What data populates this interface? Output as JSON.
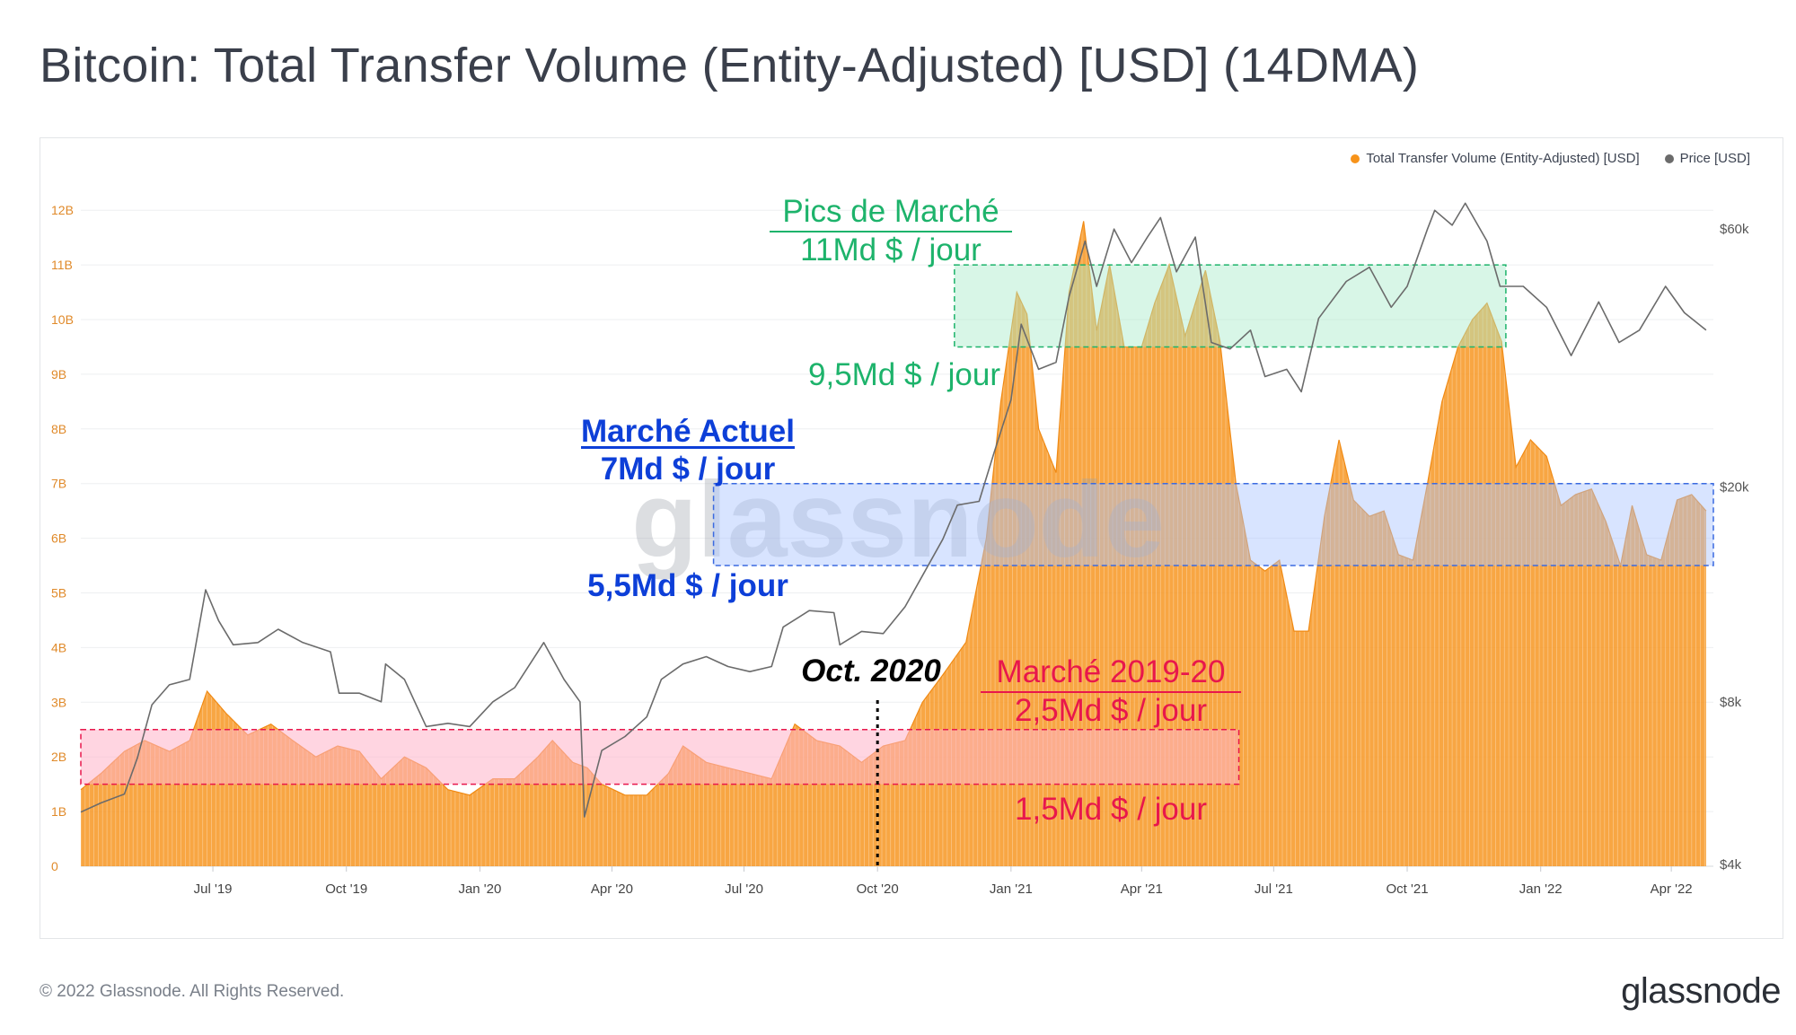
{
  "title": "Bitcoin: Total Transfer Volume (Entity-Adjusted) [USD] (14DMA)",
  "footer": {
    "copyright": "© 2022 Glassnode. All Rights Reserved.",
    "logo": "glassnode"
  },
  "watermark": "glassnode",
  "colors": {
    "volume": "#f7931a",
    "price": "#6b6b6b",
    "peak": "#1db36b",
    "current": "#0d3fd8",
    "y1920": "#e8174c"
  },
  "legend": [
    {
      "label": "Total Transfer Volume (Entity-Adjusted) [USD]",
      "color": "#f7931a"
    },
    {
      "label": "Price [USD]",
      "color": "#6b6b6b"
    }
  ],
  "annotations": {
    "peak_title": "Pics de Marché",
    "peak_top": "11Md $ / jour",
    "peak_bottom": "9,5Md $ / jour",
    "current_title": "Marché Actuel",
    "current_top": "7Md $ / jour",
    "current_bottom": "5,5Md $ / jour",
    "y1920_title": "Marché 2019-20",
    "y1920_top": "2,5Md $ / jour",
    "y1920_bottom": "1,5Md $ / jour",
    "oct2020": "Oct. 2020"
  },
  "chart_data": {
    "type": "area",
    "x_range": [
      "2019-04-01",
      "2022-04-30"
    ],
    "x_ticks": [
      "Jul '19",
      "Oct '19",
      "Jan '20",
      "Apr '20",
      "Jul '20",
      "Oct '20",
      "Jan '21",
      "Apr '21",
      "Jul '21",
      "Oct '21",
      "Jan '22",
      "Apr '22"
    ],
    "y_left": {
      "label": "Total Transfer Volume (Entity-Adjusted) [USD]",
      "range": [
        0,
        12.5
      ],
      "unit": "B",
      "ticks": [
        "0",
        "1B",
        "2B",
        "3B",
        "4B",
        "5B",
        "6B",
        "7B",
        "8B",
        "9B",
        "10B",
        "11B",
        "12B"
      ]
    },
    "y_right": {
      "label": "Price [USD]",
      "scale": "log",
      "range": [
        4000,
        80000
      ],
      "ticks": [
        "$4k",
        "$8k",
        "$20k",
        "$60k"
      ]
    },
    "series": [
      {
        "name": "Total Transfer Volume (Entity-Adjusted) [USD]",
        "unit": "billion USD",
        "points": [
          [
            "2019-04-01",
            1.4
          ],
          [
            "2019-04-15",
            1.7
          ],
          [
            "2019-05-01",
            2.1
          ],
          [
            "2019-05-15",
            2.3
          ],
          [
            "2019-06-01",
            2.1
          ],
          [
            "2019-06-15",
            2.3
          ],
          [
            "2019-06-27",
            3.2
          ],
          [
            "2019-07-10",
            2.8
          ],
          [
            "2019-07-25",
            2.4
          ],
          [
            "2019-08-10",
            2.6
          ],
          [
            "2019-08-25",
            2.3
          ],
          [
            "2019-09-10",
            2.0
          ],
          [
            "2019-09-25",
            2.2
          ],
          [
            "2019-10-10",
            2.1
          ],
          [
            "2019-10-25",
            1.6
          ],
          [
            "2019-11-10",
            2.0
          ],
          [
            "2019-11-25",
            1.8
          ],
          [
            "2019-12-10",
            1.4
          ],
          [
            "2019-12-25",
            1.3
          ],
          [
            "2020-01-10",
            1.6
          ],
          [
            "2020-01-25",
            1.6
          ],
          [
            "2020-02-10",
            2.0
          ],
          [
            "2020-02-20",
            2.3
          ],
          [
            "2020-03-05",
            1.9
          ],
          [
            "2020-03-15",
            1.8
          ],
          [
            "2020-03-25",
            1.5
          ],
          [
            "2020-04-10",
            1.3
          ],
          [
            "2020-04-25",
            1.3
          ],
          [
            "2020-05-10",
            1.7
          ],
          [
            "2020-05-20",
            2.2
          ],
          [
            "2020-06-05",
            1.9
          ],
          [
            "2020-06-20",
            1.8
          ],
          [
            "2020-07-05",
            1.7
          ],
          [
            "2020-07-20",
            1.6
          ],
          [
            "2020-08-05",
            2.6
          ],
          [
            "2020-08-20",
            2.3
          ],
          [
            "2020-09-05",
            2.2
          ],
          [
            "2020-09-20",
            1.9
          ],
          [
            "2020-10-05",
            2.2
          ],
          [
            "2020-10-20",
            2.3
          ],
          [
            "2020-11-01",
            3.0
          ],
          [
            "2020-11-15",
            3.5
          ],
          [
            "2020-12-01",
            4.1
          ],
          [
            "2020-12-15",
            6.0
          ],
          [
            "2020-12-25",
            8.5
          ],
          [
            "2021-01-05",
            10.5
          ],
          [
            "2021-01-12",
            10.1
          ],
          [
            "2021-01-20",
            8.0
          ],
          [
            "2021-02-01",
            7.2
          ],
          [
            "2021-02-10",
            10.5
          ],
          [
            "2021-02-20",
            11.8
          ],
          [
            "2021-03-01",
            9.8
          ],
          [
            "2021-03-10",
            11.0
          ],
          [
            "2021-03-20",
            9.5
          ],
          [
            "2021-04-01",
            9.5
          ],
          [
            "2021-04-10",
            10.3
          ],
          [
            "2021-04-20",
            11.0
          ],
          [
            "2021-05-01",
            9.7
          ],
          [
            "2021-05-15",
            10.9
          ],
          [
            "2021-05-25",
            9.6
          ],
          [
            "2021-06-05",
            7.0
          ],
          [
            "2021-06-15",
            5.6
          ],
          [
            "2021-06-25",
            5.4
          ],
          [
            "2021-07-05",
            5.6
          ],
          [
            "2021-07-15",
            4.3
          ],
          [
            "2021-07-25",
            4.3
          ],
          [
            "2021-08-05",
            6.4
          ],
          [
            "2021-08-15",
            7.8
          ],
          [
            "2021-08-25",
            6.7
          ],
          [
            "2021-09-05",
            6.4
          ],
          [
            "2021-09-15",
            6.5
          ],
          [
            "2021-09-25",
            5.7
          ],
          [
            "2021-10-05",
            5.6
          ],
          [
            "2021-10-15",
            7.0
          ],
          [
            "2021-10-25",
            8.5
          ],
          [
            "2021-11-05",
            9.5
          ],
          [
            "2021-11-15",
            10.0
          ],
          [
            "2021-11-25",
            10.3
          ],
          [
            "2021-12-05",
            9.6
          ],
          [
            "2021-12-15",
            7.3
          ],
          [
            "2021-12-25",
            7.8
          ],
          [
            "2022-01-05",
            7.5
          ],
          [
            "2022-01-15",
            6.6
          ],
          [
            "2022-01-25",
            6.8
          ],
          [
            "2022-02-05",
            6.9
          ],
          [
            "2022-02-15",
            6.3
          ],
          [
            "2022-02-25",
            5.5
          ],
          [
            "2022-03-05",
            6.6
          ],
          [
            "2022-03-15",
            5.7
          ],
          [
            "2022-03-25",
            5.6
          ],
          [
            "2022-04-05",
            6.7
          ],
          [
            "2022-04-15",
            6.8
          ],
          [
            "2022-04-25",
            6.5
          ]
        ]
      },
      {
        "name": "Price [USD]",
        "unit": "USD",
        "points": [
          [
            "2019-04-01",
            5000
          ],
          [
            "2019-04-15",
            5200
          ],
          [
            "2019-05-01",
            5400
          ],
          [
            "2019-05-10",
            6300
          ],
          [
            "2019-05-20",
            7900
          ],
          [
            "2019-06-01",
            8600
          ],
          [
            "2019-06-15",
            8800
          ],
          [
            "2019-06-26",
            12900
          ],
          [
            "2019-07-05",
            11300
          ],
          [
            "2019-07-15",
            10200
          ],
          [
            "2019-08-01",
            10300
          ],
          [
            "2019-08-15",
            10900
          ],
          [
            "2019-09-01",
            10300
          ],
          [
            "2019-09-20",
            9900
          ],
          [
            "2019-09-26",
            8300
          ],
          [
            "2019-10-10",
            8300
          ],
          [
            "2019-10-25",
            8000
          ],
          [
            "2019-10-28",
            9400
          ],
          [
            "2019-11-10",
            8800
          ],
          [
            "2019-11-25",
            7200
          ],
          [
            "2019-12-10",
            7300
          ],
          [
            "2019-12-25",
            7200
          ],
          [
            "2020-01-10",
            8000
          ],
          [
            "2020-01-25",
            8500
          ],
          [
            "2020-02-10",
            9900
          ],
          [
            "2020-02-14",
            10300
          ],
          [
            "2020-02-28",
            8800
          ],
          [
            "2020-03-10",
            8000
          ],
          [
            "2020-03-13",
            4900
          ],
          [
            "2020-03-25",
            6500
          ],
          [
            "2020-04-10",
            6900
          ],
          [
            "2020-04-25",
            7500
          ],
          [
            "2020-05-05",
            8800
          ],
          [
            "2020-05-20",
            9400
          ],
          [
            "2020-06-05",
            9700
          ],
          [
            "2020-06-20",
            9300
          ],
          [
            "2020-07-05",
            9100
          ],
          [
            "2020-07-20",
            9300
          ],
          [
            "2020-07-28",
            11000
          ],
          [
            "2020-08-15",
            11800
          ],
          [
            "2020-09-01",
            11700
          ],
          [
            "2020-09-05",
            10200
          ],
          [
            "2020-09-20",
            10800
          ],
          [
            "2020-10-05",
            10700
          ],
          [
            "2020-10-20",
            12000
          ],
          [
            "2020-11-01",
            13700
          ],
          [
            "2020-11-15",
            16000
          ],
          [
            "2020-11-25",
            18500
          ],
          [
            "2020-12-10",
            18800
          ],
          [
            "2020-12-20",
            23000
          ],
          [
            "2021-01-01",
            29000
          ],
          [
            "2021-01-08",
            40000
          ],
          [
            "2021-01-20",
            33000
          ],
          [
            "2021-02-01",
            34000
          ],
          [
            "2021-02-10",
            45000
          ],
          [
            "2021-02-21",
            57000
          ],
          [
            "2021-03-01",
            47000
          ],
          [
            "2021-03-13",
            60000
          ],
          [
            "2021-03-25",
            52000
          ],
          [
            "2021-04-05",
            58000
          ],
          [
            "2021-04-14",
            63000
          ],
          [
            "2021-04-25",
            50000
          ],
          [
            "2021-05-08",
            58000
          ],
          [
            "2021-05-19",
            37000
          ],
          [
            "2021-06-01",
            36000
          ],
          [
            "2021-06-15",
            39000
          ],
          [
            "2021-06-25",
            32000
          ],
          [
            "2021-07-10",
            33000
          ],
          [
            "2021-07-20",
            30000
          ],
          [
            "2021-08-01",
            41000
          ],
          [
            "2021-08-20",
            48000
          ],
          [
            "2021-09-05",
            51000
          ],
          [
            "2021-09-20",
            43000
          ],
          [
            "2021-10-01",
            47000
          ],
          [
            "2021-10-15",
            60000
          ],
          [
            "2021-10-20",
            65000
          ],
          [
            "2021-11-01",
            61000
          ],
          [
            "2021-11-10",
            67000
          ],
          [
            "2021-11-25",
            57000
          ],
          [
            "2021-12-04",
            47000
          ],
          [
            "2021-12-20",
            47000
          ],
          [
            "2022-01-05",
            43000
          ],
          [
            "2022-01-22",
            35000
          ],
          [
            "2022-02-10",
            44000
          ],
          [
            "2022-02-24",
            37000
          ],
          [
            "2022-03-10",
            39000
          ],
          [
            "2022-03-28",
            47000
          ],
          [
            "2022-04-10",
            42000
          ],
          [
            "2022-04-25",
            39000
          ]
        ]
      }
    ],
    "bands": [
      {
        "name": "Pics de Marché",
        "from": "2020-11-23",
        "to": "2021-12-08",
        "low": 9.5,
        "high": 11
      },
      {
        "name": "Marché Actuel",
        "from": "2020-06-10",
        "to": "2022-04-30",
        "low": 5.5,
        "high": 7
      },
      {
        "name": "Marché 2019-20",
        "from": "2019-04-01",
        "to": "2021-06-07",
        "low": 1.5,
        "high": 2.5
      }
    ],
    "markers": [
      {
        "label": "Oct. 2020",
        "x": "2020-10-01"
      }
    ],
    "grid": true,
    "legend_position": "top-right"
  }
}
